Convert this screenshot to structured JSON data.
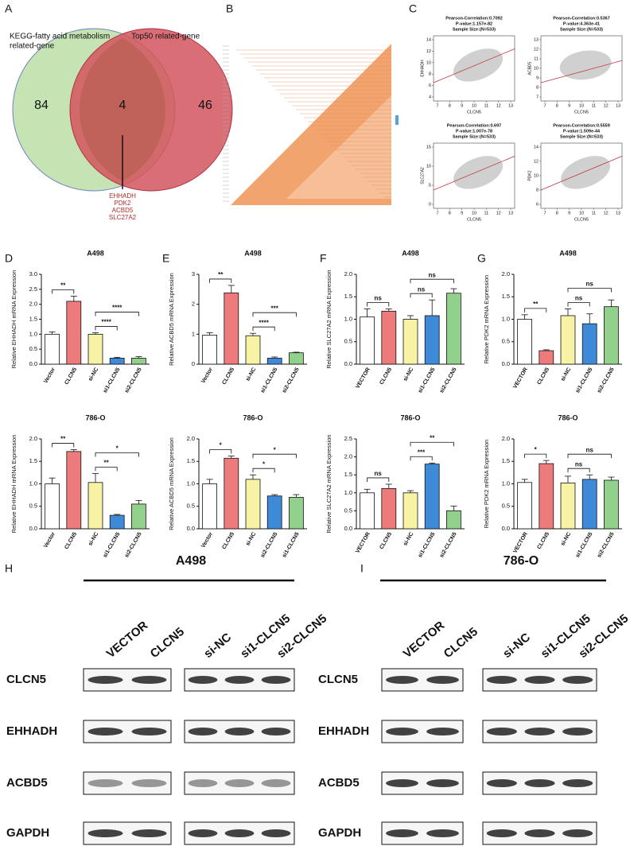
{
  "venn": {
    "panel_label": "A",
    "left_label": [
      "KEGG-fatty acid metabolism",
      "related-gene"
    ],
    "right_label": "Top50 related-gene",
    "left_count": "84",
    "overlap_count": "4",
    "right_count": "46",
    "genes": [
      "EHHADH",
      "PDK2",
      "ACBD5",
      "SLC27A2"
    ]
  },
  "heatmap": {
    "panel_label": "B"
  },
  "correlations": {
    "panel_label": "C",
    "x_label": "CLCN5",
    "xticks": [
      7,
      8,
      9,
      10,
      11,
      12,
      13
    ],
    "plots": [
      {
        "lines": [
          "Pearson-Correlation:0.7092",
          "P-value:1.157e-82",
          "Sample Size:(N=533)"
        ],
        "y_label": "EHHADH",
        "yticks": [
          4,
          6,
          8,
          10,
          12,
          14
        ]
      },
      {
        "lines": [
          "Pearson-Correlation:0.5367",
          "P-value:4.363e-41",
          "Sample Size:(N=533)"
        ],
        "y_label": "ACBD5",
        "yticks": [
          7,
          8,
          9,
          10,
          11,
          12,
          13
        ]
      },
      {
        "lines": [
          "Pearson-Correlation:0.697",
          "P-value:1.007e-78",
          "Sample Size:(N=533)"
        ],
        "y_label": "SLC27A2",
        "yticks": [
          0,
          5,
          10,
          15
        ]
      },
      {
        "lines": [
          "Pearson-Correlation:0.5559",
          "P-value:1.509e-44",
          "Sample Size:(N=533)"
        ],
        "y_label": "PDK2",
        "yticks": [
          6,
          8,
          10,
          12,
          14
        ]
      }
    ]
  },
  "chart_data": [
    {
      "type": "bar",
      "panel_label": "D",
      "title": "A498",
      "y_label": "Relative EHHADH mRNA Expression",
      "categories": [
        "Vector",
        "CLCN5",
        "si-NC",
        "si1-CLCN5",
        "si2-CLCN5"
      ],
      "values": [
        1.0,
        2.1,
        1.0,
        0.2,
        0.2
      ],
      "errors": [
        0.08,
        0.17,
        0.05,
        0.03,
        0.05
      ],
      "colors": [
        "#ffffff",
        "#ee7b7c",
        "#f7f2a4",
        "#3f8ad8",
        "#92d18c"
      ],
      "ylim": [
        0,
        3
      ],
      "yticks": [
        {
          "value": 0,
          "label": "0.0"
        },
        {
          "value": 0.5,
          "label": "0.5"
        },
        {
          "value": 1,
          "label": "1.0"
        },
        {
          "value": 1.5,
          "label": "1.5"
        },
        {
          "value": 2,
          "label": "2.0"
        },
        {
          "value": 2.5,
          "label": "2.5"
        },
        {
          "value": 3,
          "label": "3.0"
        }
      ],
      "brackets": [
        {
          "from": 0,
          "to": 1,
          "label": "**"
        },
        {
          "from": 2,
          "to": 3,
          "label": "****"
        },
        {
          "from": 2,
          "to": 4,
          "label": "****"
        }
      ]
    },
    {
      "type": "bar",
      "title": "786-O",
      "y_label": "Relative EHHADH mRNA Expression",
      "categories": [
        "Vector",
        "CLCN5",
        "si-NC",
        "si1-CLCN5",
        "si2-CLCN5"
      ],
      "values": [
        1.0,
        1.72,
        1.03,
        0.3,
        0.55
      ],
      "errors": [
        0.13,
        0.04,
        0.2,
        0.02,
        0.08
      ],
      "colors": [
        "#ffffff",
        "#ee7b7c",
        "#f7f2a4",
        "#3f8ad8",
        "#92d18c"
      ],
      "ylim": [
        0,
        2
      ],
      "yticks": [
        {
          "value": 0,
          "label": "0.0"
        },
        {
          "value": 0.5,
          "label": "0.5"
        },
        {
          "value": 1,
          "label": "1.0"
        },
        {
          "value": 1.5,
          "label": "1.5"
        },
        {
          "value": 2,
          "label": "2.0"
        }
      ],
      "brackets": [
        {
          "from": 0,
          "to": 1,
          "label": "**"
        },
        {
          "from": 2,
          "to": 3,
          "label": "**"
        },
        {
          "from": 2,
          "to": 4,
          "label": "*"
        }
      ]
    },
    {
      "type": "bar",
      "panel_label": "E",
      "title": "A498",
      "y_label": "Relative ACBD5 mRNA Expression",
      "categories": [
        "Vector",
        "CLCN5",
        "si-NC",
        "si1-CLCN5",
        "si2-CLCN5"
      ],
      "values": [
        0.97,
        2.38,
        0.95,
        0.2,
        0.38
      ],
      "errors": [
        0.08,
        0.25,
        0.08,
        0.04,
        0.02
      ],
      "colors": [
        "#ffffff",
        "#ee7b7c",
        "#f7f2a4",
        "#3f8ad8",
        "#92d18c"
      ],
      "ylim": [
        0,
        3
      ],
      "yticks": [
        0,
        1,
        2,
        3
      ],
      "brackets": [
        {
          "from": 0,
          "to": 1,
          "label": "**"
        },
        {
          "from": 2,
          "to": 3,
          "label": "****"
        },
        {
          "from": 2,
          "to": 4,
          "label": "***"
        }
      ]
    },
    {
      "type": "bar",
      "title": "786-O",
      "y_label": "Relative ACBD5 mRNA Expression",
      "categories": [
        "Vector",
        "CLCN5",
        "si-NC",
        "si2-CLCN5",
        "si1-CLCN5"
      ],
      "values": [
        1.0,
        1.57,
        1.1,
        0.73,
        0.7
      ],
      "errors": [
        0.1,
        0.05,
        0.1,
        0.03,
        0.06
      ],
      "colors": [
        "#ffffff",
        "#ee7b7c",
        "#f7f2a4",
        "#3f8ad8",
        "#92d18c"
      ],
      "ylim": [
        0,
        2
      ],
      "yticks": [
        {
          "value": 0,
          "label": "0.0"
        },
        {
          "value": 0.5,
          "label": "0.5"
        },
        {
          "value": 1,
          "label": "1.0"
        },
        {
          "value": 1.5,
          "label": "1.5"
        },
        {
          "value": 2,
          "label": "2.0"
        }
      ],
      "brackets": [
        {
          "from": 0,
          "to": 1,
          "label": "*"
        },
        {
          "from": 2,
          "to": 3,
          "label": "*"
        },
        {
          "from": 2,
          "to": 4,
          "label": "*"
        }
      ]
    },
    {
      "type": "bar",
      "panel_label": "F",
      "title": "A498",
      "y_label": "Relative SLC27A2 mRNA Expression",
      "categories": [
        "VECTOR",
        "CLCN5",
        "si-NC",
        "si1-CLCN5",
        "si2-CLCN5"
      ],
      "values": [
        1.05,
        1.18,
        1.0,
        1.08,
        1.58
      ],
      "errors": [
        0.18,
        0.05,
        0.08,
        0.35,
        0.1
      ],
      "colors": [
        "#ffffff",
        "#ee7b7c",
        "#f7f2a4",
        "#3f8ad8",
        "#92d18c"
      ],
      "ylim": [
        0,
        2
      ],
      "yticks": [
        {
          "value": 0,
          "label": "0.0"
        },
        {
          "value": 0.5,
          "label": "0.5"
        },
        {
          "value": 1,
          "label": "1.0"
        },
        {
          "value": 1.5,
          "label": "1.5"
        },
        {
          "value": 2,
          "label": "2.0"
        }
      ],
      "brackets": [
        {
          "from": 0,
          "to": 1,
          "label": "ns"
        },
        {
          "from": 2,
          "to": 3,
          "label": "ns"
        },
        {
          "from": 2,
          "to": 4,
          "label": "ns"
        }
      ]
    },
    {
      "type": "bar",
      "title": "786-O",
      "y_label": "Relative SLC27A2 mRNA Expression",
      "categories": [
        "VECTOR",
        "CLCN5",
        "si-NC",
        "si1-CLCN5",
        "si2-CLCN5"
      ],
      "values": [
        1.0,
        1.12,
        1.0,
        1.8,
        0.5
      ],
      "errors": [
        0.1,
        0.12,
        0.06,
        0.03,
        0.13
      ],
      "colors": [
        "#ffffff",
        "#ee7b7c",
        "#f7f2a4",
        "#3f8ad8",
        "#92d18c"
      ],
      "ylim": [
        0,
        2.5
      ],
      "yticks": [
        {
          "value": 0,
          "label": "0.0"
        },
        {
          "value": 0.5,
          "label": "0.5"
        },
        {
          "value": 1,
          "label": "1.0"
        },
        {
          "value": 1.5,
          "label": "1.5"
        },
        {
          "value": 2,
          "label": "2.0"
        },
        {
          "value": 2.5,
          "label": "2.5"
        }
      ],
      "brackets": [
        {
          "from": 0,
          "to": 1,
          "label": "ns"
        },
        {
          "from": 2,
          "to": 3,
          "label": "***"
        },
        {
          "from": 2,
          "to": 4,
          "label": "**"
        }
      ]
    },
    {
      "type": "bar",
      "panel_label": "G",
      "title": "A498",
      "y_label": "Relative PDK2 mRNA Expression",
      "categories": [
        "VECTOR",
        "CLCN5",
        "si-NC",
        "si1-CLCN5",
        "si2-CLCN5"
      ],
      "values": [
        1.0,
        0.3,
        1.08,
        0.9,
        1.28
      ],
      "errors": [
        0.1,
        0.02,
        0.15,
        0.22,
        0.15
      ],
      "colors": [
        "#ffffff",
        "#ee7b7c",
        "#f7f2a4",
        "#3f8ad8",
        "#92d18c"
      ],
      "ylim": [
        0,
        2
      ],
      "yticks": [
        {
          "value": 0,
          "label": "0.0"
        },
        {
          "value": 0.5,
          "label": "0.5"
        },
        {
          "value": 1,
          "label": "1.0"
        },
        {
          "value": 1.5,
          "label": "1.5"
        },
        {
          "value": 2,
          "label": "2.0"
        }
      ],
      "brackets": [
        {
          "from": 0,
          "to": 1,
          "label": "**"
        },
        {
          "from": 2,
          "to": 3,
          "label": "ns"
        },
        {
          "from": 2,
          "to": 4,
          "label": "ns"
        }
      ]
    },
    {
      "type": "bar",
      "title": "786-O",
      "y_label": "Relative PDK2 mRNA Expression",
      "categories": [
        "VECTOR",
        "CLCN5",
        "si-NC",
        "si1-CLCN5",
        "si2-CLCN5"
      ],
      "values": [
        1.03,
        1.45,
        1.02,
        1.1,
        1.08
      ],
      "errors": [
        0.07,
        0.07,
        0.15,
        0.1,
        0.07
      ],
      "colors": [
        "#ffffff",
        "#ee7b7c",
        "#f7f2a4",
        "#3f8ad8",
        "#92d18c"
      ],
      "ylim": [
        0,
        2
      ],
      "yticks": [
        {
          "value": 0,
          "label": "0.0"
        },
        {
          "value": 0.5,
          "label": "0.5"
        },
        {
          "value": 1,
          "label": "1.0"
        },
        {
          "value": 1.5,
          "label": "1.5"
        },
        {
          "value": 2,
          "label": "2.0"
        }
      ],
      "brackets": [
        {
          "from": 0,
          "to": 1,
          "label": "*"
        },
        {
          "from": 2,
          "to": 3,
          "label": "ns"
        },
        {
          "from": 2,
          "to": 4,
          "label": "ns"
        }
      ]
    }
  ],
  "blots": [
    {
      "panel_label": "H",
      "title": "A498",
      "groups": [
        [
          "VECTOR",
          "CLCN5"
        ],
        [
          "si-NC",
          "si1-CLCN5",
          "si2-CLCN5"
        ]
      ],
      "rows": [
        "CLCN5",
        "EHHADH",
        "ACBD5",
        "GAPDH"
      ]
    },
    {
      "panel_label": "I",
      "title": "786-O",
      "groups": [
        [
          "VECTOR",
          "CLCN5"
        ],
        [
          "si-NC",
          "si1-CLCN5",
          "si2-CLCN5"
        ]
      ],
      "rows": [
        "CLCN5",
        "EHHADH",
        "ACBD5",
        "GAPDH"
      ]
    }
  ]
}
